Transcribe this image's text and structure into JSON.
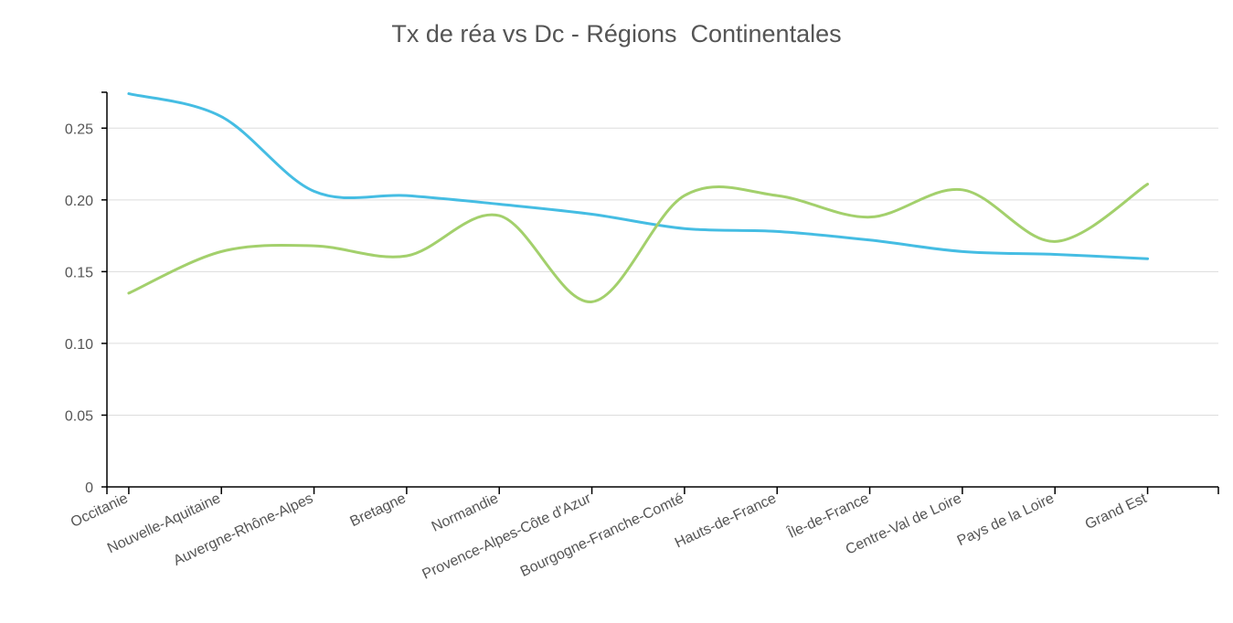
{
  "chart_data": {
    "type": "line",
    "title": "Tx de réa vs Dc - Régions  Continentales",
    "xlabel": "",
    "ylabel": "",
    "categories": [
      "Occitanie",
      "Nouvelle-Aquitaine",
      "Auvergne-Rhône-Alpes",
      "Bretagne",
      "Normandie",
      "Provence-Alpes-Côte d'Azur",
      "Bourgogne-Franche-Comté",
      "Hauts-de-France",
      "Île-de-France",
      "Centre-Val de Loire",
      "Pays de la Loire",
      "Grand Est"
    ],
    "ylim": [
      0,
      0.275
    ],
    "yticks": [
      0,
      0.05,
      0.1,
      0.15,
      0.2,
      0.25
    ],
    "ytick_labels": [
      "0",
      "0.05",
      "0.10",
      "0.15",
      "0.20",
      "0.25"
    ],
    "grid": true,
    "series": [
      {
        "color": "#45bde3",
        "values": [
          0.274,
          0.258,
          0.206,
          0.203,
          0.197,
          0.19,
          0.18,
          0.178,
          0.172,
          0.164,
          0.162,
          0.159
        ]
      },
      {
        "color": "#a3d06c",
        "values": [
          0.135,
          0.164,
          0.168,
          0.161,
          0.189,
          0.129,
          0.203,
          0.203,
          0.188,
          0.207,
          0.171,
          0.211
        ]
      }
    ],
    "colors": {
      "axis": "#000000",
      "grid": "#dddddd",
      "tick_label": "#555555",
      "title": "#555555"
    }
  }
}
